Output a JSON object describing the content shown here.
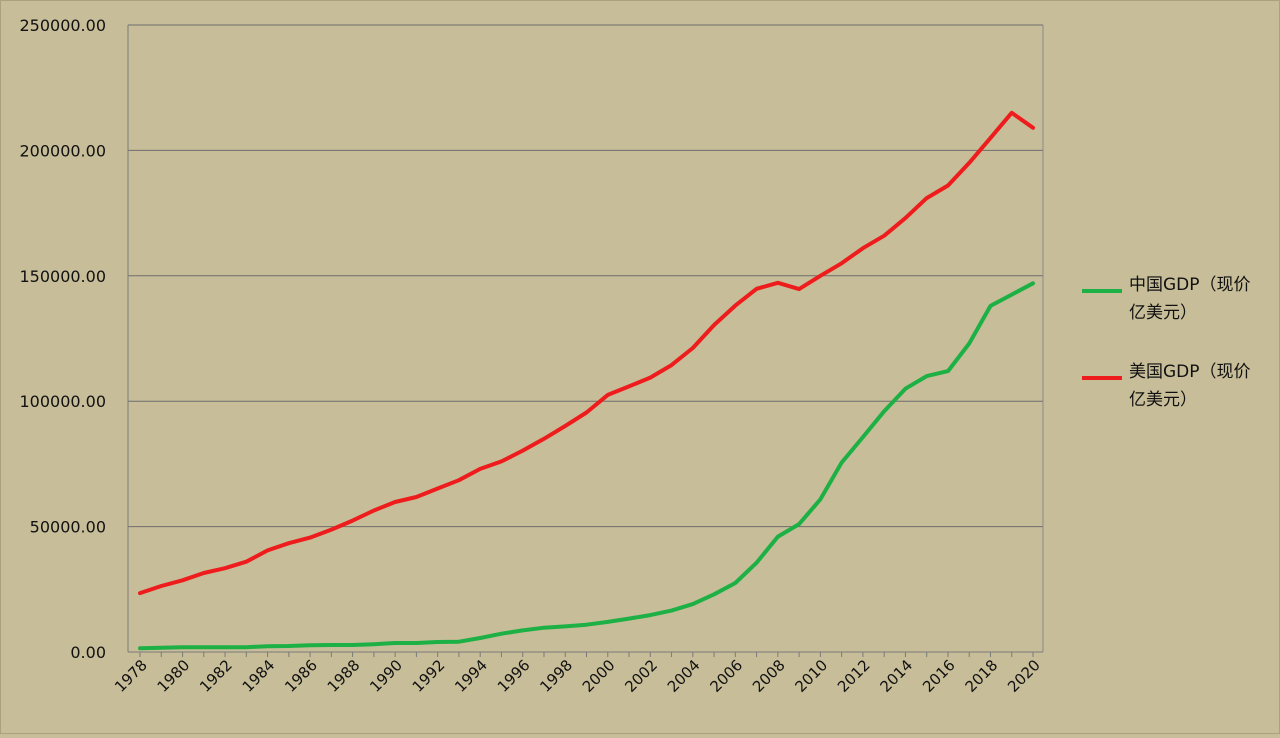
{
  "chart_data": {
    "type": "line",
    "title": "",
    "xlabel": "",
    "ylabel": "",
    "ylim": [
      0,
      250000
    ],
    "y_ticks": [
      "0.00",
      "50000.00",
      "100000.00",
      "150000.00",
      "200000.00",
      "250000.00"
    ],
    "x_tick_labels": [
      "1978",
      "1980",
      "1982",
      "1984",
      "1986",
      "1988",
      "1990",
      "1992",
      "1994",
      "1996",
      "1998",
      "2000",
      "2002",
      "2004",
      "2006",
      "2008",
      "2010",
      "2012",
      "2014",
      "2016",
      "2018",
      "2020"
    ],
    "grid": true,
    "legend_position": "right",
    "x": [
      1978,
      1979,
      1980,
      1981,
      1982,
      1983,
      1984,
      1985,
      1986,
      1987,
      1988,
      1989,
      1990,
      1991,
      1992,
      1993,
      1994,
      1995,
      1996,
      1997,
      1998,
      1999,
      2000,
      2001,
      2002,
      2003,
      2004,
      2005,
      2006,
      2007,
      2008,
      2009,
      2010,
      2011,
      2012,
      2013,
      2014,
      2015,
      2016,
      2017,
      2018,
      2019,
      2020
    ],
    "series": [
      {
        "name": "中国GDP（现价亿美元）",
        "name_lines": [
          "中国GDP（现价",
          "亿美元）"
        ],
        "color": "#1db045",
        "values": [
          1500,
          1700,
          1900,
          1900,
          1900,
          1900,
          2300,
          2400,
          2700,
          2800,
          2800,
          3100,
          3600,
          3600,
          4000,
          4100,
          5600,
          7300,
          8600,
          9700,
          10200,
          10900,
          12000,
          13300,
          14700,
          16500,
          19100,
          23000,
          27500,
          35600,
          46000,
          51000,
          60900,
          75500,
          85700,
          96000,
          105000,
          110000,
          112000,
          123000,
          138000,
          142500,
          147000
        ]
      },
      {
        "name": "美国GDP（现价亿美元）",
        "name_lines": [
          "美国GDP（现价",
          "亿美元）"
        ],
        "color": "#ee1c1c",
        "values": [
          23500,
          26300,
          28600,
          31500,
          33400,
          36000,
          40500,
          43400,
          45600,
          48800,
          52400,
          56400,
          59800,
          61800,
          65200,
          68500,
          73000,
          76000,
          80300,
          85000,
          90100,
          95500,
          102500,
          105900,
          109400,
          114400,
          121200,
          130400,
          138100,
          144800,
          147200,
          144700,
          150000,
          155000,
          161000,
          166000,
          173000,
          181000,
          186000,
          195000,
          205000,
          215000,
          209000
        ]
      }
    ]
  }
}
